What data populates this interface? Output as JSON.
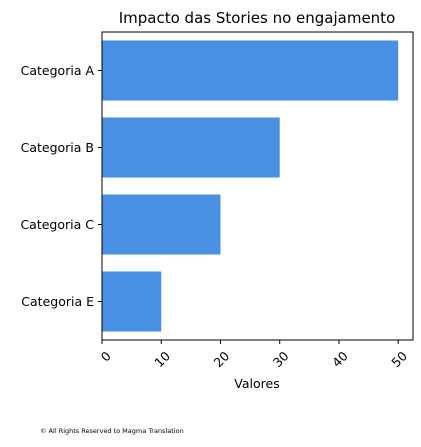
{
  "chart_data": {
    "type": "bar",
    "orientation": "horizontal",
    "title": "Impacto das Stories no engajamento",
    "xlabel": "Valores",
    "ylabel": "",
    "categories": [
      "Categoria A",
      "Categoria B",
      "Categoria C",
      "Categoria E"
    ],
    "values": [
      50,
      30,
      20,
      10
    ],
    "xlim": [
      0,
      52.5
    ],
    "xticks": [
      0,
      10,
      20,
      30,
      40,
      50
    ],
    "grid": false,
    "bar_color": "#4a90e2"
  },
  "footer": {
    "text": "© All Rights Reserved to Magma Translation"
  }
}
